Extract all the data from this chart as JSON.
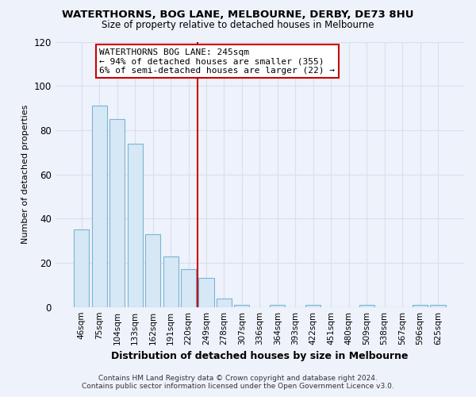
{
  "title": "WATERTHORNS, BOG LANE, MELBOURNE, DERBY, DE73 8HU",
  "subtitle": "Size of property relative to detached houses in Melbourne",
  "xlabel": "Distribution of detached houses by size in Melbourne",
  "ylabel": "Number of detached properties",
  "bar_labels": [
    "46sqm",
    "75sqm",
    "104sqm",
    "133sqm",
    "162sqm",
    "191sqm",
    "220sqm",
    "249sqm",
    "278sqm",
    "307sqm",
    "336sqm",
    "364sqm",
    "393sqm",
    "422sqm",
    "451sqm",
    "480sqm",
    "509sqm",
    "538sqm",
    "567sqm",
    "596sqm",
    "625sqm"
  ],
  "bar_values": [
    35,
    91,
    85,
    74,
    33,
    23,
    17,
    13,
    4,
    1,
    0,
    1,
    0,
    1,
    0,
    0,
    1,
    0,
    0,
    1,
    1
  ],
  "bar_color": "#d6e8f5",
  "bar_edge_color": "#7ab4d4",
  "vline_color": "#cc0000",
  "annotation_title": "WATERTHORNS BOG LANE: 245sqm",
  "annotation_line1": "← 94% of detached houses are smaller (355)",
  "annotation_line2": "6% of semi-detached houses are larger (22) →",
  "annotation_box_color": "#ffffff",
  "annotation_box_edge": "#cc0000",
  "ylim": [
    0,
    120
  ],
  "yticks": [
    0,
    20,
    40,
    60,
    80,
    100,
    120
  ],
  "footer1": "Contains HM Land Registry data © Crown copyright and database right 2024.",
  "footer2": "Contains public sector information licensed under the Open Government Licence v3.0.",
  "background_color": "#eef2fa",
  "grid_color": "#d8dff0",
  "vline_index": 7
}
